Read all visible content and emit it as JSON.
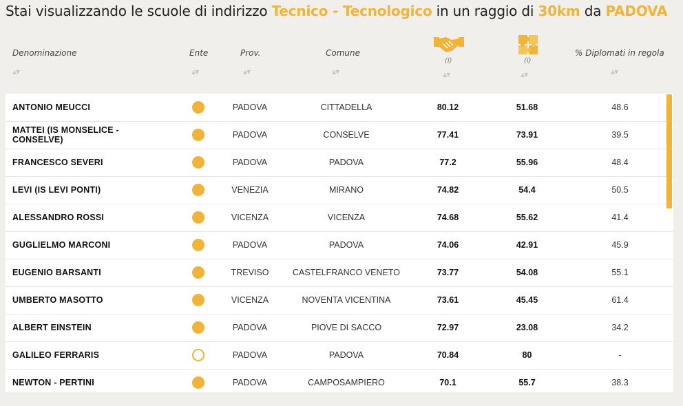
{
  "title": {
    "prefix": "Stai visualizzando le scuole di indirizzo ",
    "indirizzo": "Tecnico - Tecnologico",
    "middle": " in un raggio di ",
    "raggio": "30km",
    "between": " da ",
    "citta": "PADOVA"
  },
  "headers": {
    "denominazione": "Denominazione",
    "ente": "Ente",
    "prov": "Prov.",
    "comune": "Comune",
    "info1": "(i)",
    "info2": "(i)",
    "diplomati": "% Diplomati in regola"
  },
  "icons": {
    "col1": "handshake-icon",
    "col2": "puzzle-icon",
    "sort": "sort-arrows-icon"
  },
  "colors": {
    "accent": "#f0b43a"
  },
  "rows": [
    {
      "name": "ANTONIO MEUCCI",
      "ente": "full",
      "prov": "PADOVA",
      "comune": "CITTADELLA",
      "v1": "80.12",
      "v2": "51.68",
      "v3": "48.6"
    },
    {
      "name": "MATTEI (IS MONSELICE - CONSELVE)",
      "ente": "full",
      "prov": "PADOVA",
      "comune": "CONSELVE",
      "v1": "77.41",
      "v2": "73.91",
      "v3": "39.5"
    },
    {
      "name": "FRANCESCO SEVERI",
      "ente": "full",
      "prov": "PADOVA",
      "comune": "PADOVA",
      "v1": "77.2",
      "v2": "55.96",
      "v3": "48.4"
    },
    {
      "name": "LEVI (IS LEVI PONTI)",
      "ente": "full",
      "prov": "VENEZIA",
      "comune": "MIRANO",
      "v1": "74.82",
      "v2": "54.4",
      "v3": "50.5"
    },
    {
      "name": "ALESSANDRO ROSSI",
      "ente": "full",
      "prov": "VICENZA",
      "comune": "VICENZA",
      "v1": "74.68",
      "v2": "55.62",
      "v3": "41.4"
    },
    {
      "name": "GUGLIELMO MARCONI",
      "ente": "full",
      "prov": "PADOVA",
      "comune": "PADOVA",
      "v1": "74.06",
      "v2": "42.91",
      "v3": "45.9"
    },
    {
      "name": "EUGENIO BARSANTI",
      "ente": "full",
      "prov": "TREVISO",
      "comune": "CASTELFRANCO VENETO",
      "v1": "73.77",
      "v2": "54.08",
      "v3": "55.1"
    },
    {
      "name": "UMBERTO MASOTTO",
      "ente": "full",
      "prov": "VICENZA",
      "comune": "NOVENTA VICENTINA",
      "v1": "73.61",
      "v2": "45.45",
      "v3": "61.4"
    },
    {
      "name": "ALBERT EINSTEIN",
      "ente": "full",
      "prov": "PADOVA",
      "comune": "PIOVE DI SACCO",
      "v1": "72.97",
      "v2": "23.08",
      "v3": "34.2"
    },
    {
      "name": "GALILEO FERRARIS",
      "ente": "empty",
      "prov": "PADOVA",
      "comune": "PADOVA",
      "v1": "70.84",
      "v2": "80",
      "v3": "-"
    },
    {
      "name": "NEWTON - PERTINI",
      "ente": "full",
      "prov": "PADOVA",
      "comune": "CAMPOSAMPIERO",
      "v1": "70.1",
      "v2": "55.7",
      "v3": "38.3"
    }
  ]
}
